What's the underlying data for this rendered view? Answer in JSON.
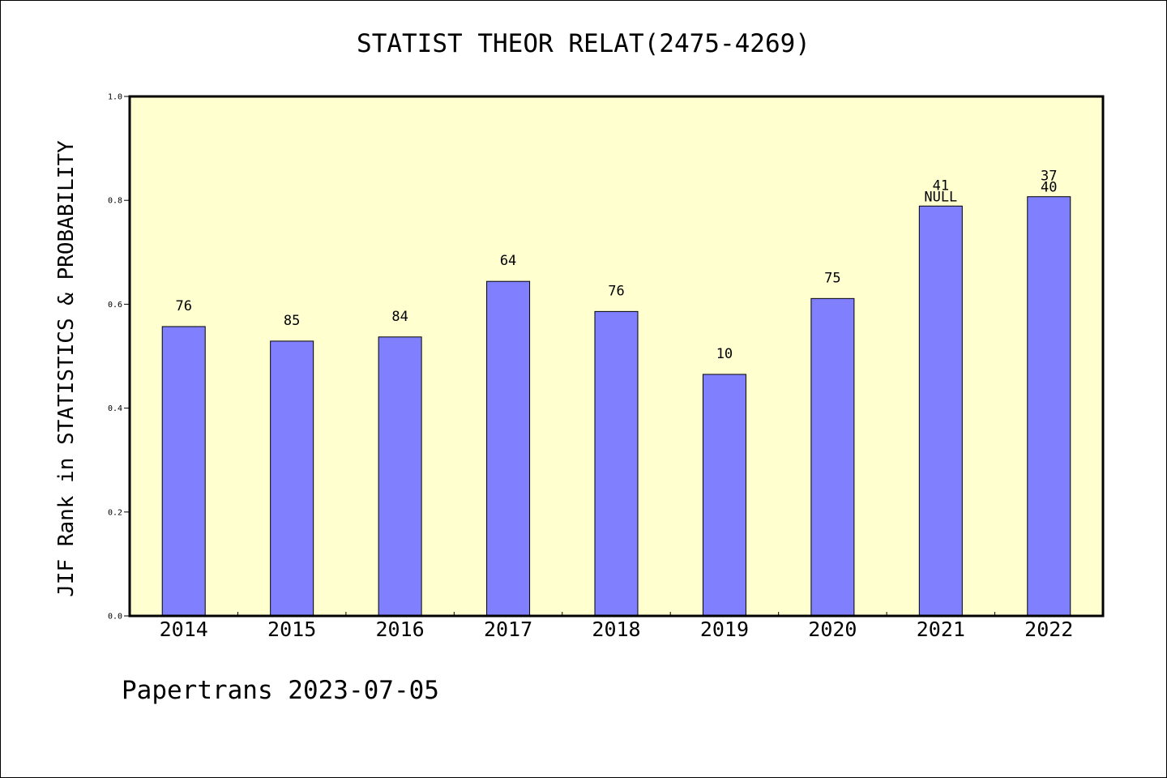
{
  "chart_data": {
    "type": "bar",
    "title": "STATIST THEOR RELAT(2475-4269)",
    "ylabel": "JIF Rank in STATISTICS & PROBABILITY",
    "xlabel": "",
    "ylim": [
      0,
      1.0
    ],
    "yticks": [
      "0.0",
      "0.2",
      "0.4",
      "0.6",
      "0.8",
      "1.0"
    ],
    "categories": [
      "2014",
      "2015",
      "2016",
      "2017",
      "2018",
      "2019",
      "2020",
      "2021",
      "2022"
    ],
    "values": [
      0.557,
      0.529,
      0.537,
      0.644,
      0.586,
      0.465,
      0.611,
      0.789,
      0.807
    ],
    "bar_labels": [
      [
        "76"
      ],
      [
        "85"
      ],
      [
        "84"
      ],
      [
        "64"
      ],
      [
        "76"
      ],
      [
        "10"
      ],
      [
        "75"
      ],
      [
        "41",
        "NULL"
      ],
      [
        "37",
        "40"
      ]
    ],
    "plot_background": "#ffffd0",
    "bar_color": "#8080ff",
    "grid": false
  },
  "footer": {
    "text": "Papertrans 2023-07-05"
  }
}
